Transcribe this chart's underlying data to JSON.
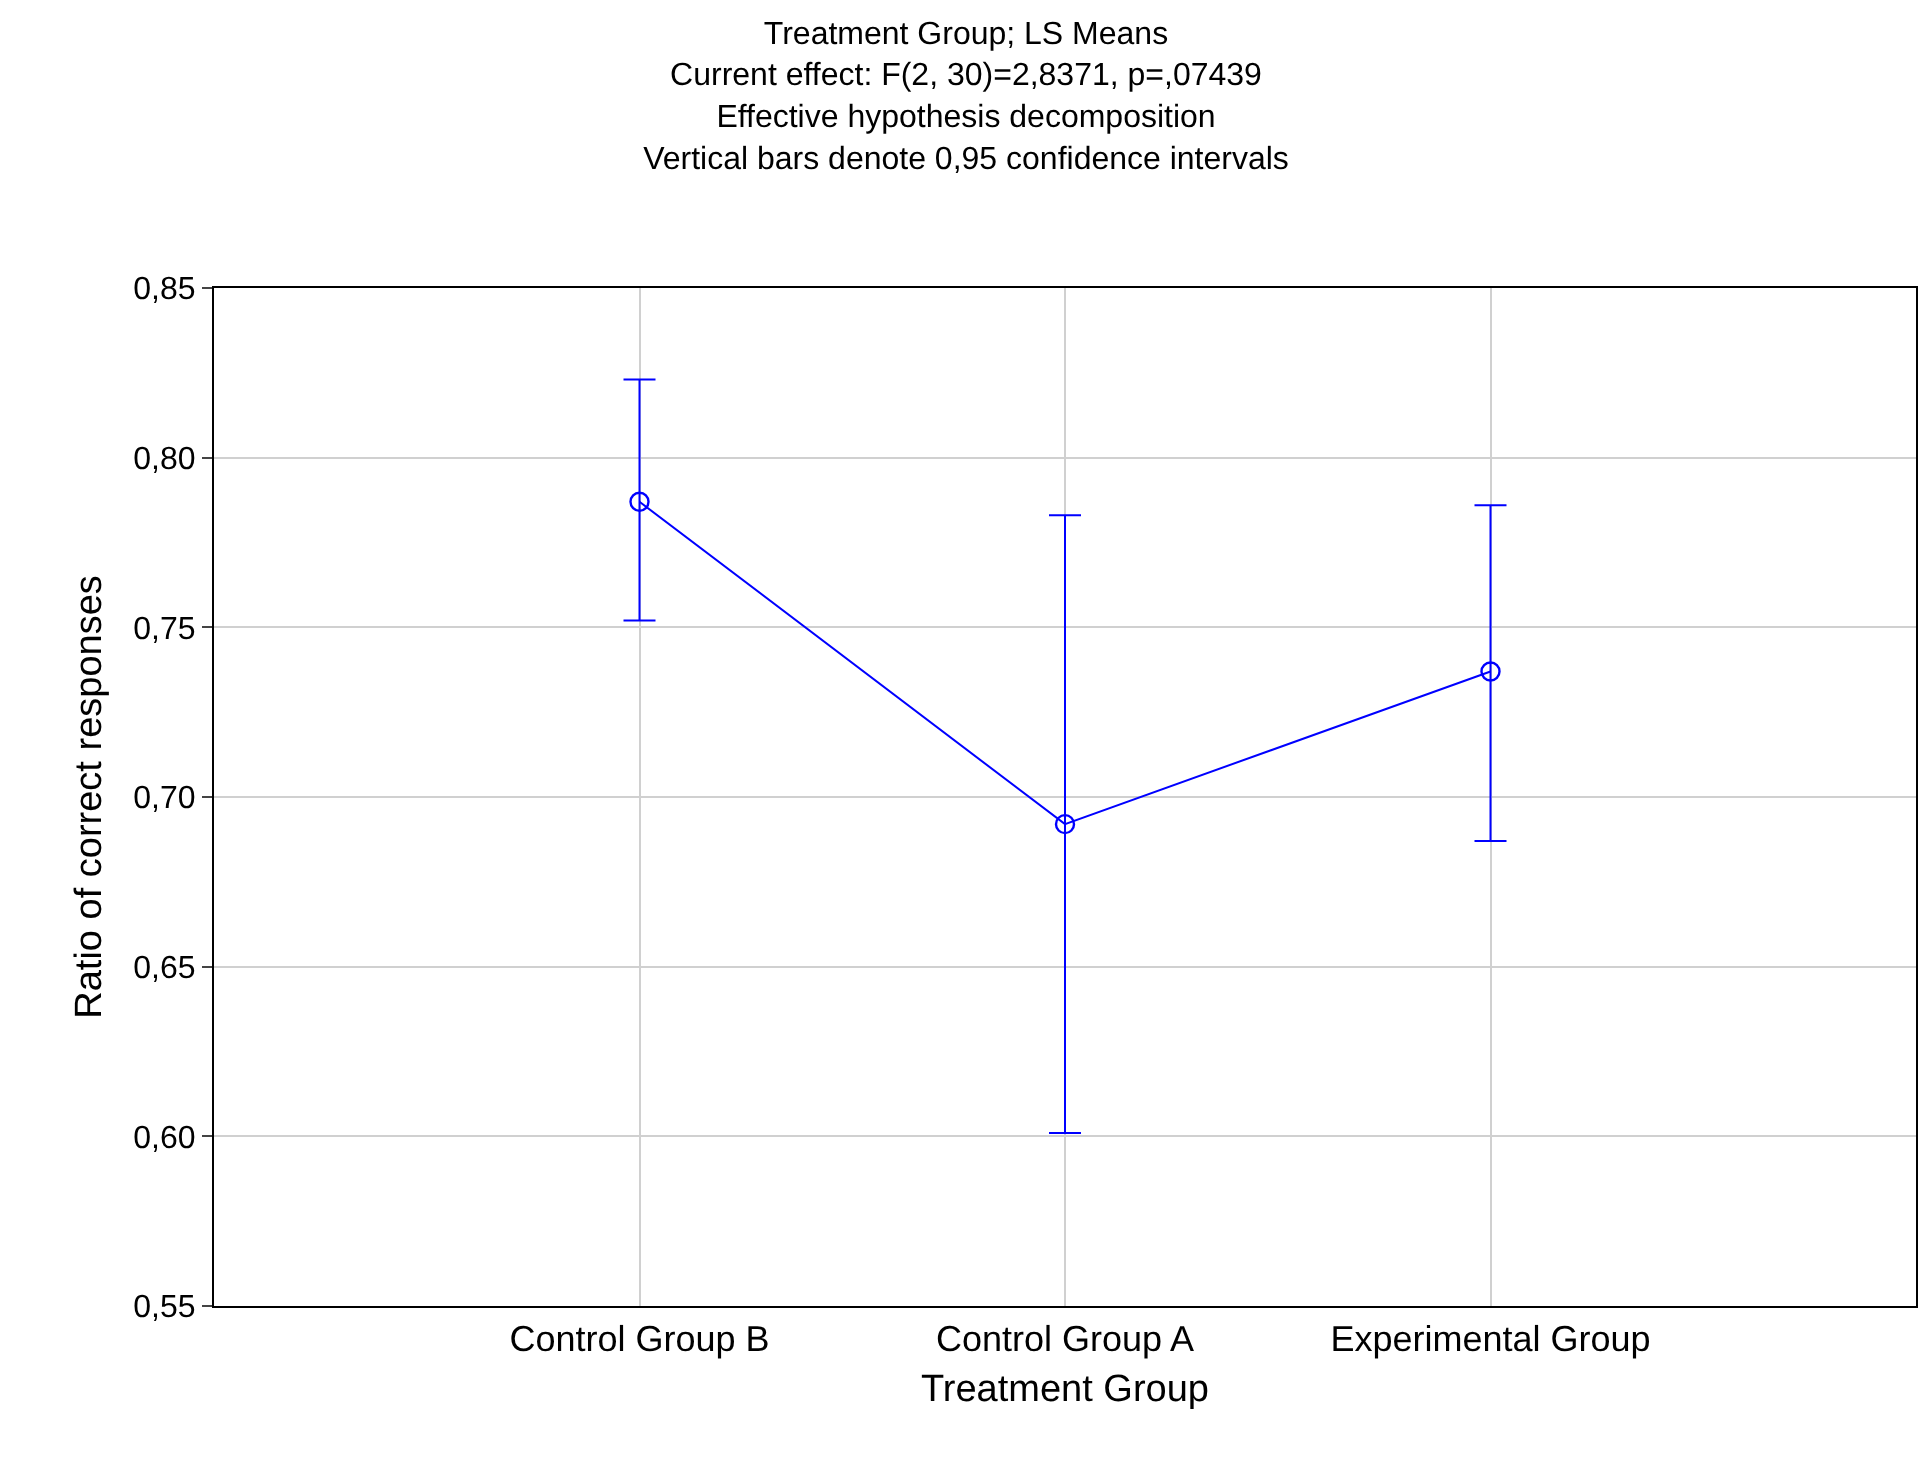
{
  "chart_data": {
    "type": "line",
    "title": "Treatment Group; LS Means\nCurrent effect: F(2, 30)=2,8371, p=,07439\nEffective hypothesis decomposition\nVertical bars denote 0,95 confidence intervals",
    "xlabel": "Treatment Group",
    "ylabel": "Ratio of correct responses",
    "categories": [
      "Control Group B",
      "Control Group A",
      "Experimental Group"
    ],
    "series": [
      {
        "color": "#0000ff",
        "values": [
          0.787,
          0.692,
          0.737
        ],
        "errors": [
          [
            0.752,
            0.823
          ],
          [
            0.601,
            0.783
          ],
          [
            0.687,
            0.786
          ]
        ]
      }
    ],
    "ylim": [
      0.55,
      0.85
    ],
    "yticks": [
      {
        "value": 0.55,
        "label": "0,55"
      },
      {
        "value": 0.6,
        "label": "0,60"
      },
      {
        "value": 0.65,
        "label": "0,65"
      },
      {
        "value": 0.7,
        "label": "0,70"
      },
      {
        "value": 0.75,
        "label": "0,75"
      },
      {
        "value": 0.8,
        "label": "0,80"
      },
      {
        "value": 0.85,
        "label": "0,85"
      }
    ],
    "grid": true,
    "marker": "circle",
    "line_style": "solid",
    "legend": false
  }
}
